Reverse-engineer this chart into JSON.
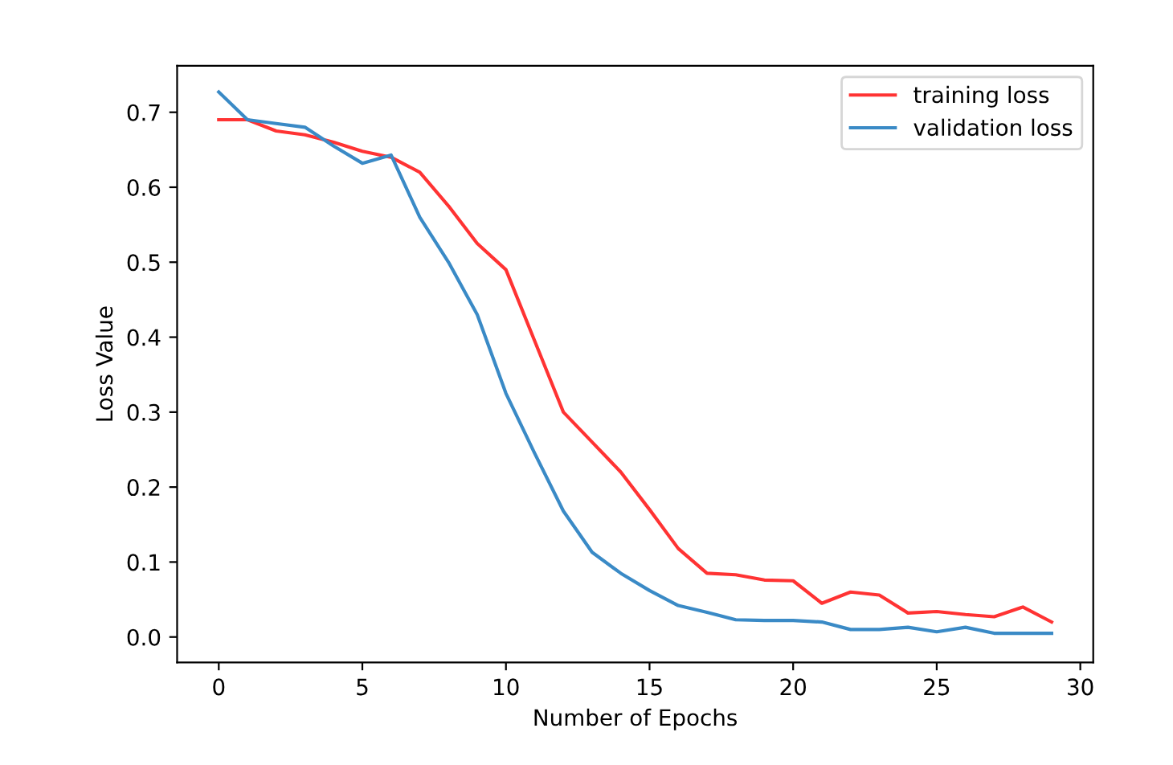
{
  "chart_data": {
    "type": "line",
    "xlabel": "Number of Epochs",
    "ylabel": "Loss Value",
    "x": [
      0,
      1,
      2,
      3,
      4,
      5,
      6,
      7,
      8,
      9,
      10,
      11,
      12,
      13,
      14,
      15,
      16,
      17,
      18,
      19,
      20,
      21,
      22,
      23,
      24,
      25,
      26,
      27,
      28,
      29
    ],
    "series": [
      {
        "name": "training loss",
        "color": "#ff3333",
        "values": [
          0.69,
          0.69,
          0.675,
          0.67,
          0.66,
          0.648,
          0.64,
          0.62,
          0.575,
          0.525,
          0.49,
          0.395,
          0.3,
          0.26,
          0.22,
          0.17,
          0.118,
          0.085,
          0.083,
          0.076,
          0.075,
          0.045,
          0.06,
          0.056,
          0.032,
          0.034,
          0.03,
          0.027,
          0.04,
          0.02
        ]
      },
      {
        "name": "validation loss",
        "color": "#3a8ac6",
        "values": [
          0.727,
          0.69,
          0.685,
          0.68,
          0.655,
          0.632,
          0.643,
          0.56,
          0.5,
          0.43,
          0.325,
          0.245,
          0.168,
          0.113,
          0.085,
          0.062,
          0.042,
          0.033,
          0.023,
          0.022,
          0.022,
          0.02,
          0.01,
          0.01,
          0.013,
          0.007,
          0.013,
          0.005,
          0.005,
          0.005
        ]
      }
    ],
    "xlim": [
      -1.45,
      30.45
    ],
    "ylim": [
      -0.034,
      0.762
    ],
    "xticks": [
      0,
      5,
      10,
      15,
      20,
      25,
      30
    ],
    "yticks": [
      {
        "value": 0,
        "label": "0.0"
      },
      0.1,
      0.2,
      0.3,
      0.4,
      0.5,
      0.6,
      0.7
    ],
    "legend": "top right",
    "grid": false,
    "marker": "none",
    "line_style": "solid"
  }
}
